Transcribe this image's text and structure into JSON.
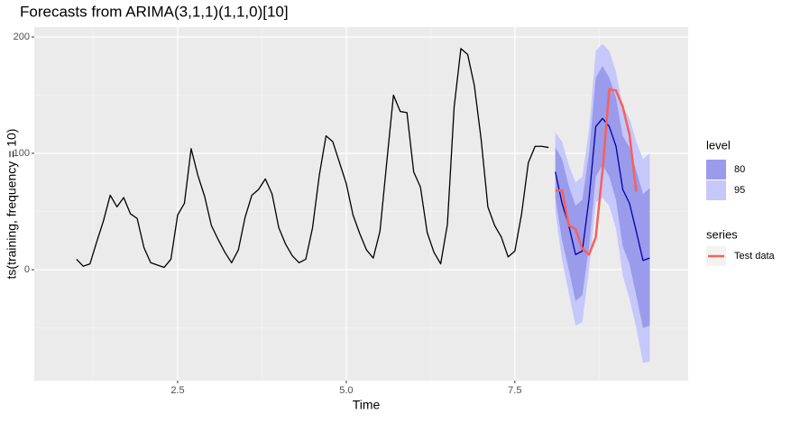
{
  "chart_data": {
    "type": "line",
    "title": "Forecasts from ARIMA(3,1,1)(1,1,0)[10]",
    "x_label": "Time",
    "y_label": "ts(training, frequency = 10)",
    "xlim": [
      0.374,
      10.07
    ],
    "ylim": [
      -95.3,
      208.5
    ],
    "xticks": [
      2.5,
      {
        "value": 5,
        "label": "5.0"
      },
      7.5
    ],
    "yticks": [
      0,
      100,
      200
    ],
    "xminor": [
      1.25,
      3.75,
      6.25,
      8.75
    ],
    "yminor": [
      -50,
      50,
      150
    ],
    "grid": true,
    "bands_legend_title": "level",
    "series_legend_title": "series",
    "bands": [
      {
        "name": "95",
        "color": "#c6c7fa",
        "x": [
          8.1,
          8.2,
          8.3,
          8.4,
          8.5,
          8.6,
          8.7,
          8.8,
          8.9,
          9.0,
          9.1,
          9.2,
          9.3,
          9.4,
          9.5
        ],
        "upper": [
          118,
          110,
          90,
          75,
          80,
          120,
          188,
          194,
          188,
          170,
          140,
          130,
          110,
          95,
          100
        ],
        "lower": [
          50,
          8,
          -20,
          -48,
          -45,
          0,
          58,
          62,
          55,
          35,
          -5,
          -25,
          -50,
          -80,
          -79
        ]
      },
      {
        "name": "80",
        "color": "#9a9bea",
        "x": [
          8.1,
          8.2,
          8.3,
          8.4,
          8.5,
          8.6,
          8.7,
          8.8,
          8.9,
          9.0,
          9.1,
          9.2,
          9.3,
          9.4,
          9.5
        ],
        "upper": [
          105,
          95,
          72,
          55,
          60,
          100,
          165,
          175,
          165,
          148,
          115,
          105,
          85,
          65,
          70
        ],
        "lower": [
          62,
          25,
          0,
          -27,
          -22,
          20,
          80,
          90,
          80,
          60,
          20,
          5,
          -22,
          -50,
          -48
        ]
      }
    ],
    "series": [
      {
        "color": "#000000",
        "x": [
          1.0,
          1.1,
          1.2,
          1.3,
          1.4,
          1.5,
          1.6,
          1.7,
          1.8,
          1.9,
          2.0,
          2.1,
          2.2,
          2.3,
          2.4,
          2.5,
          2.6,
          2.7,
          2.8,
          2.9,
          3.0,
          3.1,
          3.2,
          3.3,
          3.4,
          3.5,
          3.6,
          3.7,
          3.8,
          3.9,
          4.0,
          4.1,
          4.2,
          4.3,
          4.4,
          4.5,
          4.6,
          4.7,
          4.8,
          4.9,
          5.0,
          5.1,
          5.2,
          5.3,
          5.4,
          5.5,
          5.6,
          5.7,
          5.8,
          5.9,
          6.0,
          6.1,
          6.2,
          6.3,
          6.4,
          6.5,
          6.6,
          6.7,
          6.8,
          6.9,
          7.0,
          7.1,
          7.2,
          7.3,
          7.4,
          7.5,
          7.6,
          7.7,
          7.8,
          7.9,
          8.0
        ],
        "values": [
          9,
          3,
          5,
          24,
          42,
          64,
          54,
          62,
          48,
          44,
          19,
          6,
          4,
          2,
          9,
          47,
          57,
          104,
          81,
          63,
          38,
          26,
          15,
          6,
          17,
          45,
          64,
          69,
          78,
          65,
          36,
          22,
          12,
          6,
          9,
          36,
          81,
          115,
          110,
          92,
          74,
          47,
          31,
          17,
          10,
          33,
          92,
          150,
          136,
          135,
          84,
          71,
          32,
          15,
          5,
          39,
          140,
          190,
          185,
          158,
          112,
          54,
          38,
          28,
          11,
          16,
          48,
          92,
          106,
          106,
          105
        ]
      },
      {
        "color": "#0000aa",
        "x": [
          8.1,
          8.2,
          8.3,
          8.4,
          8.5,
          8.6,
          8.7,
          8.8,
          8.9,
          9.0,
          9.1,
          9.2,
          9.3,
          9.4,
          9.5
        ],
        "values": [
          84,
          57,
          38,
          13,
          16,
          61,
          123,
          130,
          123,
          106,
          69,
          57,
          33,
          8,
          10
        ]
      },
      {
        "name": "Test data",
        "color": "#f8605a",
        "x": [
          8.1,
          8.2,
          8.3,
          8.4,
          8.5,
          8.6,
          8.7,
          8.8,
          8.9,
          9.0,
          9.1,
          9.2,
          9.3
        ],
        "values": [
          68,
          68,
          38,
          35,
          18,
          13,
          28,
          85,
          155,
          154,
          140,
          116,
          67
        ]
      }
    ]
  }
}
